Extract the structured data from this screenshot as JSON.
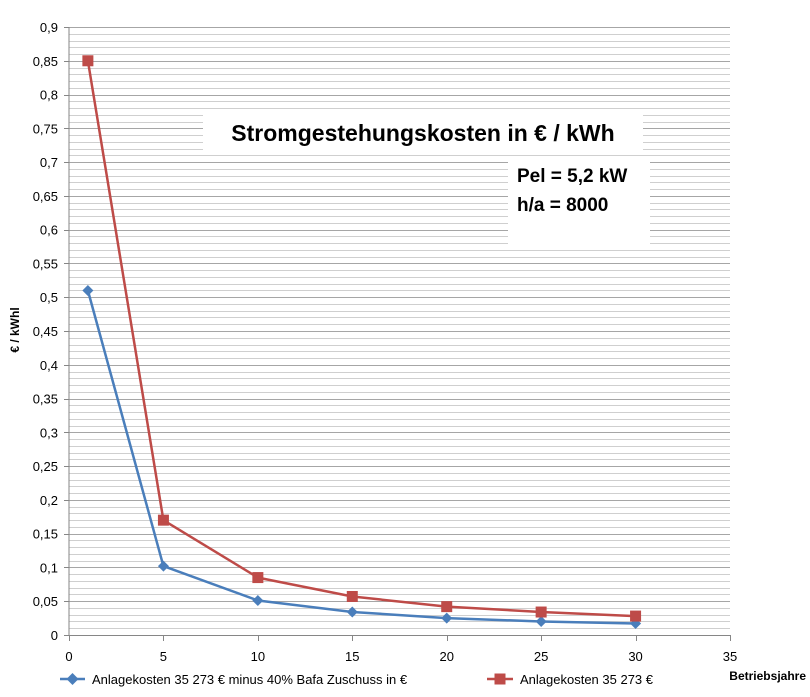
{
  "chart_data": {
    "type": "line",
    "title": "Stromgestehungskosten in € / kWh",
    "annotations": [
      "Pel = 5,2 kW",
      "h/a = 8000"
    ],
    "xlabel": "Betriebsjahre",
    "ylabel": "€ / kWhl",
    "xlim": [
      0,
      35
    ],
    "ylim": [
      0,
      0.9
    ],
    "xticks": [
      0,
      5,
      10,
      15,
      20,
      25,
      30,
      35
    ],
    "yticks": [
      0,
      0.05,
      0.1,
      0.15,
      0.2,
      0.25,
      0.3,
      0.35,
      0.4,
      0.45,
      0.5,
      0.55,
      0.6,
      0.65,
      0.7,
      0.75,
      0.8,
      0.85,
      0.9
    ],
    "xtick_labels": [
      "0",
      "5",
      "10",
      "15",
      "20",
      "25",
      "30",
      "35"
    ],
    "ytick_labels": [
      "0",
      "0,05",
      "0,1",
      "0,15",
      "0,2",
      "0,25",
      "0,3",
      "0,35",
      "0,4",
      "0,45",
      "0,5",
      "0,55",
      "0,6",
      "0,65",
      "0,7",
      "0,75",
      "0,8",
      "0,85",
      "0,9"
    ],
    "grid": true,
    "legend_position": "bottom",
    "series": [
      {
        "name": "Anlagekosten  35 273 € minus 40% Bafa Zuschuss in €",
        "color": "#4a7ebb",
        "marker": "diamond",
        "x": [
          1,
          5,
          10,
          15,
          20,
          25,
          30
        ],
        "y": [
          0.51,
          0.102,
          0.051,
          0.034,
          0.025,
          0.02,
          0.017
        ]
      },
      {
        "name": "Anlagekosten  35 273 €",
        "color": "#be4b48",
        "marker": "square",
        "x": [
          1,
          5,
          10,
          15,
          20,
          25,
          30
        ],
        "y": [
          0.85,
          0.17,
          0.085,
          0.057,
          0.042,
          0.034,
          0.028
        ]
      }
    ]
  }
}
